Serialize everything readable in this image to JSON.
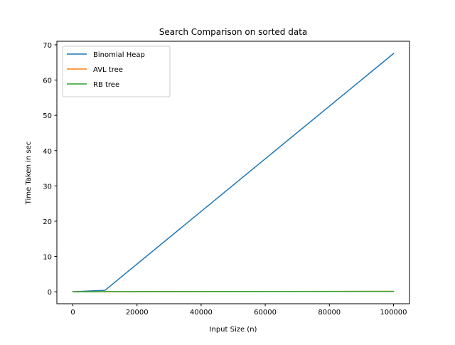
{
  "chart_data": {
    "type": "line",
    "title": "Search Comparison on sorted data",
    "xlabel": "Input Size (n)",
    "ylabel": "Time Taken in sec",
    "xlim": [
      -5000,
      105000
    ],
    "ylim": [
      -3.4,
      71.0
    ],
    "xticks": [
      0,
      20000,
      40000,
      60000,
      80000,
      100000
    ],
    "yticks": [
      0,
      10,
      20,
      30,
      40,
      50,
      60,
      70
    ],
    "grid": false,
    "legend_position": "top-left",
    "x": [
      0,
      10000,
      100000
    ],
    "series": [
      {
        "name": "Binomial Heap",
        "color": "#1f77b4",
        "values": [
          0.0,
          0.4,
          67.5
        ]
      },
      {
        "name": "AVL tree",
        "color": "#ff7f0e",
        "values": [
          0.0,
          0.02,
          0.1
        ]
      },
      {
        "name": "RB tree",
        "color": "#2ca02c",
        "values": [
          0.0,
          0.02,
          0.1
        ]
      }
    ]
  }
}
